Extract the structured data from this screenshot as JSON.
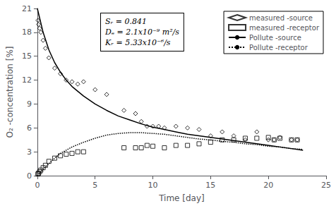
{
  "chart_data": {
    "type": "line",
    "xlabel": "Time [day]",
    "ylabel": "O₂ -concentration [%]",
    "xlim": [
      0,
      25
    ],
    "ylim": [
      0,
      21
    ],
    "xticks": [
      0,
      5,
      10,
      15,
      20,
      25
    ],
    "yticks": [
      0,
      3,
      6,
      9,
      12,
      15,
      18,
      21
    ],
    "grid": false,
    "legend": "upper right",
    "annotations": [
      "Sᵣ = 0.841",
      "Dₑ = 2.1x10⁻⁹ m²/s",
      "Kᵣ = 5.33x10⁻⁶/s"
    ],
    "series": [
      {
        "name": "measured -source",
        "type": "scatter",
        "marker": "diamond",
        "color": "#000000",
        "x": [
          0.05,
          0.1,
          0.2,
          0.3,
          0.5,
          0.7,
          1.0,
          1.5,
          2.0,
          2.5,
          3.0,
          3.5,
          4.0,
          5.0,
          6.0,
          7.5,
          8.5,
          9.0,
          9.5,
          10.0,
          10.5,
          11.0,
          12.0,
          13.0,
          14.0,
          15.0,
          16.0,
          17.0,
          18.0,
          19.0,
          20.0,
          20.5,
          21.0,
          22.0,
          22.5
        ],
        "values": [
          19.5,
          19.0,
          18.5,
          18.0,
          17.0,
          16.0,
          14.8,
          13.5,
          12.8,
          12.0,
          11.8,
          11.5,
          11.8,
          10.8,
          10.2,
          8.2,
          7.8,
          6.8,
          6.2,
          6.2,
          6.2,
          6.0,
          6.2,
          6.0,
          5.8,
          5.0,
          5.5,
          5.0,
          4.5,
          5.5,
          4.5,
          4.5,
          4.8,
          4.5,
          4.5
        ]
      },
      {
        "name": "measured -receptor",
        "type": "scatter",
        "marker": "square",
        "color": "#000000",
        "x": [
          0.05,
          0.1,
          0.2,
          0.3,
          0.5,
          0.7,
          1.0,
          1.5,
          2.0,
          2.5,
          3.0,
          3.5,
          4.0,
          7.5,
          8.5,
          9.0,
          9.5,
          10.0,
          11.0,
          12.0,
          13.0,
          14.0,
          15.0,
          16.0,
          17.0,
          18.0,
          19.0,
          20.0,
          20.5,
          21.0,
          22.0,
          22.5
        ],
        "values": [
          0.2,
          0.3,
          0.5,
          0.7,
          1.0,
          1.3,
          1.8,
          2.2,
          2.5,
          2.7,
          2.8,
          3.0,
          3.0,
          3.5,
          3.5,
          3.5,
          3.8,
          3.7,
          3.5,
          3.8,
          3.8,
          4.0,
          4.2,
          4.5,
          4.5,
          4.7,
          4.7,
          4.8,
          4.5,
          4.7,
          4.5,
          4.5
        ]
      },
      {
        "name": "Pollute -source",
        "type": "line",
        "line_style": "solid",
        "color": "#000000",
        "x": [
          0,
          0.5,
          1,
          1.5,
          2,
          2.5,
          3,
          4,
          5,
          6,
          7,
          8,
          9,
          10,
          11,
          12,
          13,
          14,
          15,
          16,
          17,
          18,
          19,
          20,
          21,
          22,
          23
        ],
        "values": [
          21.0,
          18.0,
          15.8,
          14.2,
          13.0,
          12.0,
          11.2,
          10.0,
          9.0,
          8.2,
          7.5,
          7.0,
          6.5,
          6.1,
          5.8,
          5.5,
          5.2,
          5.0,
          4.8,
          4.6,
          4.4,
          4.2,
          4.0,
          3.8,
          3.6,
          3.4,
          3.2
        ]
      },
      {
        "name": "Pollute -receptor",
        "type": "line",
        "line_style": "dotted",
        "color": "#000000",
        "x": [
          0,
          0.5,
          1,
          1.5,
          2,
          2.5,
          3,
          4,
          5,
          6,
          7,
          8,
          9,
          10,
          11,
          12,
          13,
          14,
          15,
          16,
          17,
          18,
          19,
          20,
          21,
          22,
          23
        ],
        "values": [
          0.0,
          0.8,
          1.5,
          2.2,
          2.8,
          3.2,
          3.6,
          4.2,
          4.7,
          5.1,
          5.3,
          5.4,
          5.4,
          5.3,
          5.2,
          5.0,
          4.8,
          4.6,
          4.5,
          4.3,
          4.2,
          4.0,
          3.9,
          3.7,
          3.6,
          3.4,
          3.3
        ]
      }
    ]
  }
}
